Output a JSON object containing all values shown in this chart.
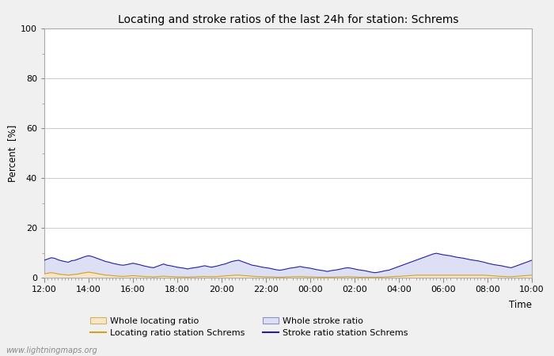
{
  "title": "Locating and stroke ratios of the last 24h for station: Schrems",
  "xlabel": "Time",
  "ylabel": "Percent  [%]",
  "watermark": "www.lightningmaps.org",
  "ylim": [
    0,
    100
  ],
  "yticks": [
    0,
    20,
    40,
    60,
    80,
    100
  ],
  "yticks_minor": [
    10,
    30,
    50,
    70,
    90
  ],
  "xtick_labels": [
    "12:00",
    "14:00",
    "16:00",
    "18:00",
    "20:00",
    "22:00",
    "00:00",
    "02:00",
    "04:00",
    "06:00",
    "08:00",
    "10:00"
  ],
  "background_color": "#f0f0f0",
  "plot_bg_color": "#ffffff",
  "grid_color": "#cccccc",
  "whole_locating_fill_color": "#f5e6c8",
  "whole_locating_line_color": "#d4b060",
  "whole_stroke_fill_color": "#dde0f5",
  "whole_stroke_line_color": "#9090c8",
  "station_locating_color": "#d4a020",
  "station_stroke_color": "#2020a0",
  "legend_labels": [
    "Whole locating ratio",
    "Locating ratio station Schrems",
    "Whole stroke ratio",
    "Stroke ratio station Schrems"
  ],
  "n_points": 144,
  "whole_stroke_data": [
    7.0,
    7.5,
    8.0,
    7.8,
    7.2,
    6.8,
    6.5,
    6.2,
    6.8,
    7.0,
    7.5,
    8.0,
    8.5,
    8.8,
    8.5,
    8.0,
    7.5,
    7.0,
    6.5,
    6.2,
    5.8,
    5.5,
    5.2,
    5.0,
    5.2,
    5.5,
    5.8,
    5.5,
    5.2,
    4.8,
    4.5,
    4.2,
    4.0,
    4.5,
    5.0,
    5.5,
    5.0,
    4.8,
    4.5,
    4.2,
    4.0,
    3.8,
    3.5,
    3.8,
    4.0,
    4.2,
    4.5,
    4.8,
    4.5,
    4.2,
    4.5,
    4.8,
    5.2,
    5.5,
    6.0,
    6.5,
    6.8,
    7.0,
    6.5,
    6.0,
    5.5,
    5.0,
    4.8,
    4.5,
    4.2,
    4.0,
    3.8,
    3.5,
    3.2,
    3.0,
    3.2,
    3.5,
    3.8,
    4.0,
    4.2,
    4.5,
    4.2,
    4.0,
    3.8,
    3.5,
    3.2,
    3.0,
    2.8,
    2.5,
    2.8,
    3.0,
    3.2,
    3.5,
    3.8,
    4.0,
    3.8,
    3.5,
    3.2,
    3.0,
    2.8,
    2.5,
    2.2,
    2.0,
    2.2,
    2.5,
    2.8,
    3.0,
    3.5,
    4.0,
    4.5,
    5.0,
    5.5,
    6.0,
    6.5,
    7.0,
    7.5,
    8.0,
    8.5,
    9.0,
    9.5,
    9.8,
    9.5,
    9.2,
    9.0,
    8.8,
    8.5,
    8.2,
    8.0,
    7.8,
    7.5,
    7.2,
    7.0,
    6.8,
    6.5,
    6.2,
    5.8,
    5.5,
    5.2,
    5.0,
    4.8,
    4.5,
    4.2,
    4.0,
    4.5,
    5.0,
    5.5,
    6.0,
    6.5,
    7.0
  ],
  "whole_locating_data": [
    1.5,
    1.8,
    2.0,
    1.8,
    1.5,
    1.3,
    1.2,
    1.0,
    1.2,
    1.3,
    1.5,
    1.8,
    2.0,
    2.2,
    2.0,
    1.8,
    1.5,
    1.3,
    1.0,
    1.0,
    0.8,
    0.7,
    0.6,
    0.5,
    0.6,
    0.7,
    0.8,
    0.7,
    0.6,
    0.5,
    0.4,
    0.4,
    0.3,
    0.4,
    0.5,
    0.6,
    0.5,
    0.4,
    0.4,
    0.3,
    0.3,
    0.3,
    0.2,
    0.3,
    0.3,
    0.4,
    0.4,
    0.5,
    0.4,
    0.4,
    0.4,
    0.5,
    0.6,
    0.7,
    0.8,
    0.9,
    1.0,
    1.0,
    0.9,
    0.8,
    0.7,
    0.6,
    0.5,
    0.4,
    0.4,
    0.3,
    0.3,
    0.3,
    0.2,
    0.2,
    0.2,
    0.3,
    0.3,
    0.4,
    0.4,
    0.4,
    0.4,
    0.3,
    0.3,
    0.3,
    0.2,
    0.2,
    0.2,
    0.2,
    0.2,
    0.2,
    0.3,
    0.3,
    0.3,
    0.4,
    0.3,
    0.3,
    0.2,
    0.2,
    0.2,
    0.2,
    0.2,
    0.2,
    0.2,
    0.2,
    0.3,
    0.3,
    0.4,
    0.5,
    0.5,
    0.6,
    0.7,
    0.8,
    0.9,
    1.0,
    1.0,
    1.0,
    1.0,
    1.0,
    1.0,
    1.0,
    1.0,
    1.0,
    1.0,
    1.0,
    1.0,
    1.0,
    1.0,
    1.0,
    1.0,
    1.0,
    1.0,
    1.0,
    1.0,
    1.0,
    0.9,
    0.8,
    0.7,
    0.6,
    0.5,
    0.5,
    0.4,
    0.4,
    0.5,
    0.6,
    0.7,
    0.8,
    0.9,
    1.0
  ]
}
